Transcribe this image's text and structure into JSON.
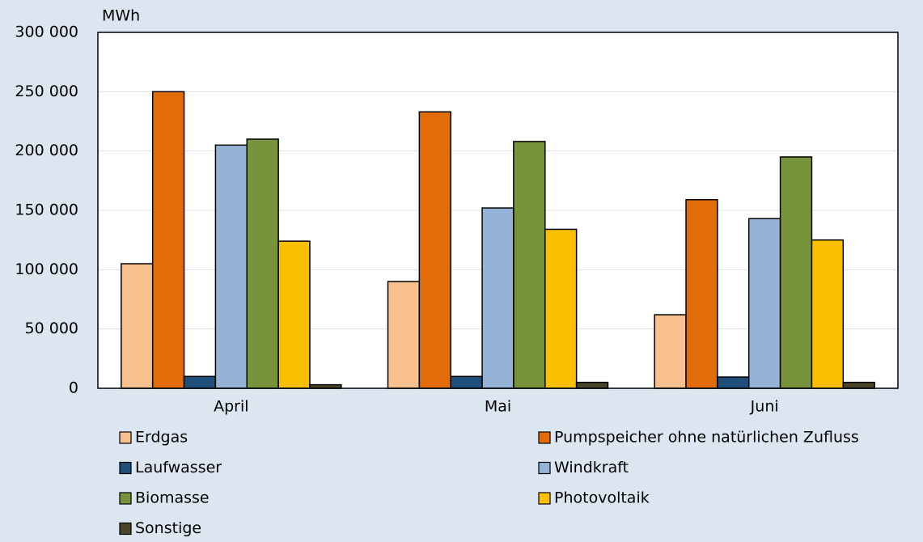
{
  "chart_data": {
    "type": "bar",
    "y_unit": "MWh",
    "categories": [
      "April",
      "Mai",
      "Juni"
    ],
    "series": [
      {
        "name": "Erdgas",
        "color": "#f9c08f",
        "values": [
          105000,
          90000,
          62000
        ]
      },
      {
        "name": "Pumpspeicher ohne natürlichen Zufluss",
        "color": "#e36c0a",
        "values": [
          250000,
          233000,
          159000
        ]
      },
      {
        "name": "Laufwasser",
        "color": "#1f4e79",
        "values": [
          10000,
          10000,
          9500
        ]
      },
      {
        "name": "Windkraft",
        "color": "#95b3d7",
        "values": [
          205000,
          152000,
          143000
        ]
      },
      {
        "name": "Biomasse",
        "color": "#77933c",
        "values": [
          210000,
          208000,
          195000
        ]
      },
      {
        "name": "Photovoltaik",
        "color": "#fac000",
        "values": [
          124000,
          134000,
          125000
        ]
      },
      {
        "name": "Sonstige",
        "color": "#4a452a",
        "values": [
          3000,
          5000,
          5000
        ]
      }
    ],
    "ylim": [
      0,
      300000
    ],
    "yticks": [
      0,
      {
        "value": 50000,
        "label": "50 000"
      },
      {
        "value": 100000,
        "label": "100 000"
      },
      {
        "value": 150000,
        "label": "150 000"
      },
      {
        "value": 200000,
        "label": "200 000"
      },
      {
        "value": 250000,
        "label": "250 000"
      },
      {
        "value": 300000,
        "label": "300 000"
      }
    ],
    "grid": true
  }
}
